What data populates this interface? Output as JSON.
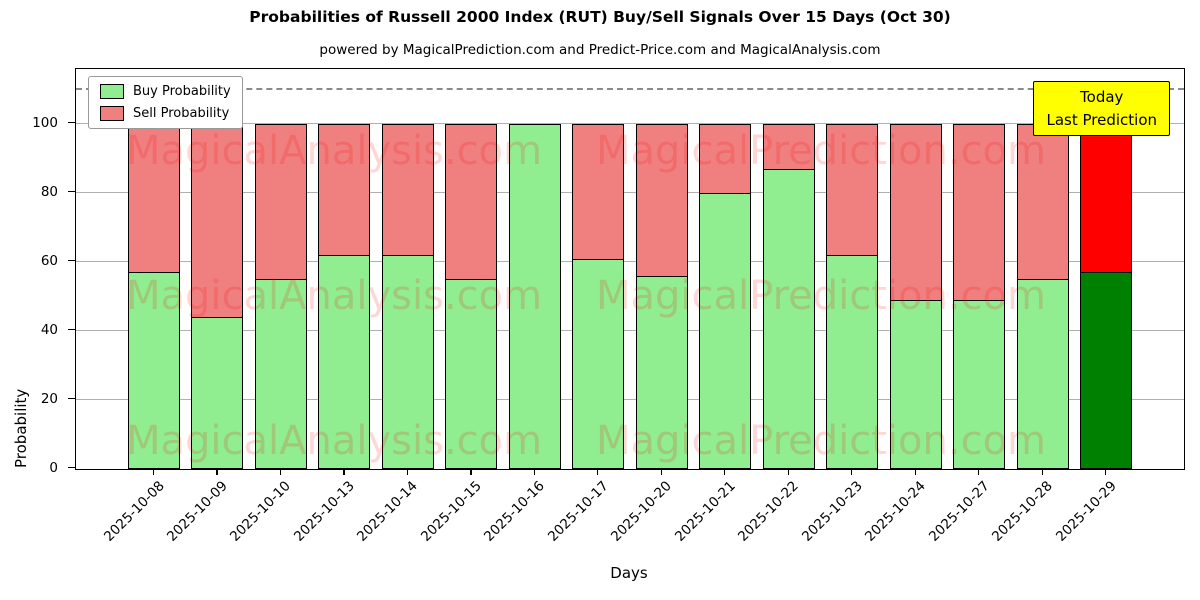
{
  "chart_data": {
    "type": "bar",
    "stacked": true,
    "title": "Probabilities of Russell 2000 Index (RUT) Buy/Sell Signals Over 15 Days (Oct 30)",
    "subtitle": "powered by MagicalPrediction.com and Predict-Price.com and MagicalAnalysis.com",
    "xlabel": "Days",
    "ylabel": "Probability",
    "ylim": [
      0,
      116
    ],
    "yticks": [
      0,
      20,
      40,
      60,
      80,
      100
    ],
    "grid": "horizontal",
    "legend_position": "upper-left",
    "threshold_line_y": 110,
    "categories": [
      "2025-10-08",
      "2025-10-09",
      "2025-10-10",
      "2025-10-13",
      "2025-10-14",
      "2025-10-15",
      "2025-10-16",
      "2025-10-17",
      "2025-10-20",
      "2025-10-21",
      "2025-10-22",
      "2025-10-23",
      "2025-10-24",
      "2025-10-27",
      "2025-10-28",
      "2025-10-29"
    ],
    "series": [
      {
        "name": "Buy Probability",
        "color": "#90EE90",
        "values": [
          57,
          44,
          55,
          62,
          62,
          55,
          100,
          61,
          56,
          80,
          87,
          62,
          49,
          49,
          55,
          57
        ]
      },
      {
        "name": "Sell Probability",
        "color": "#F08080",
        "values": [
          43,
          56,
          45,
          38,
          38,
          45,
          0,
          39,
          44,
          20,
          13,
          38,
          51,
          51,
          45,
          43
        ]
      }
    ],
    "bar_edge_color": "#000000",
    "last_bar_colors": {
      "buy": "#008000",
      "sell": "#FF0000"
    }
  },
  "annotation": {
    "line1": "Today",
    "line2": "Last Prediction",
    "bg_color": "#FFFF00"
  },
  "watermarks": {
    "left_text": "MagicalAnalysis.com",
    "right_text": "MagicalPrediction.com",
    "color": "#FF0000"
  }
}
